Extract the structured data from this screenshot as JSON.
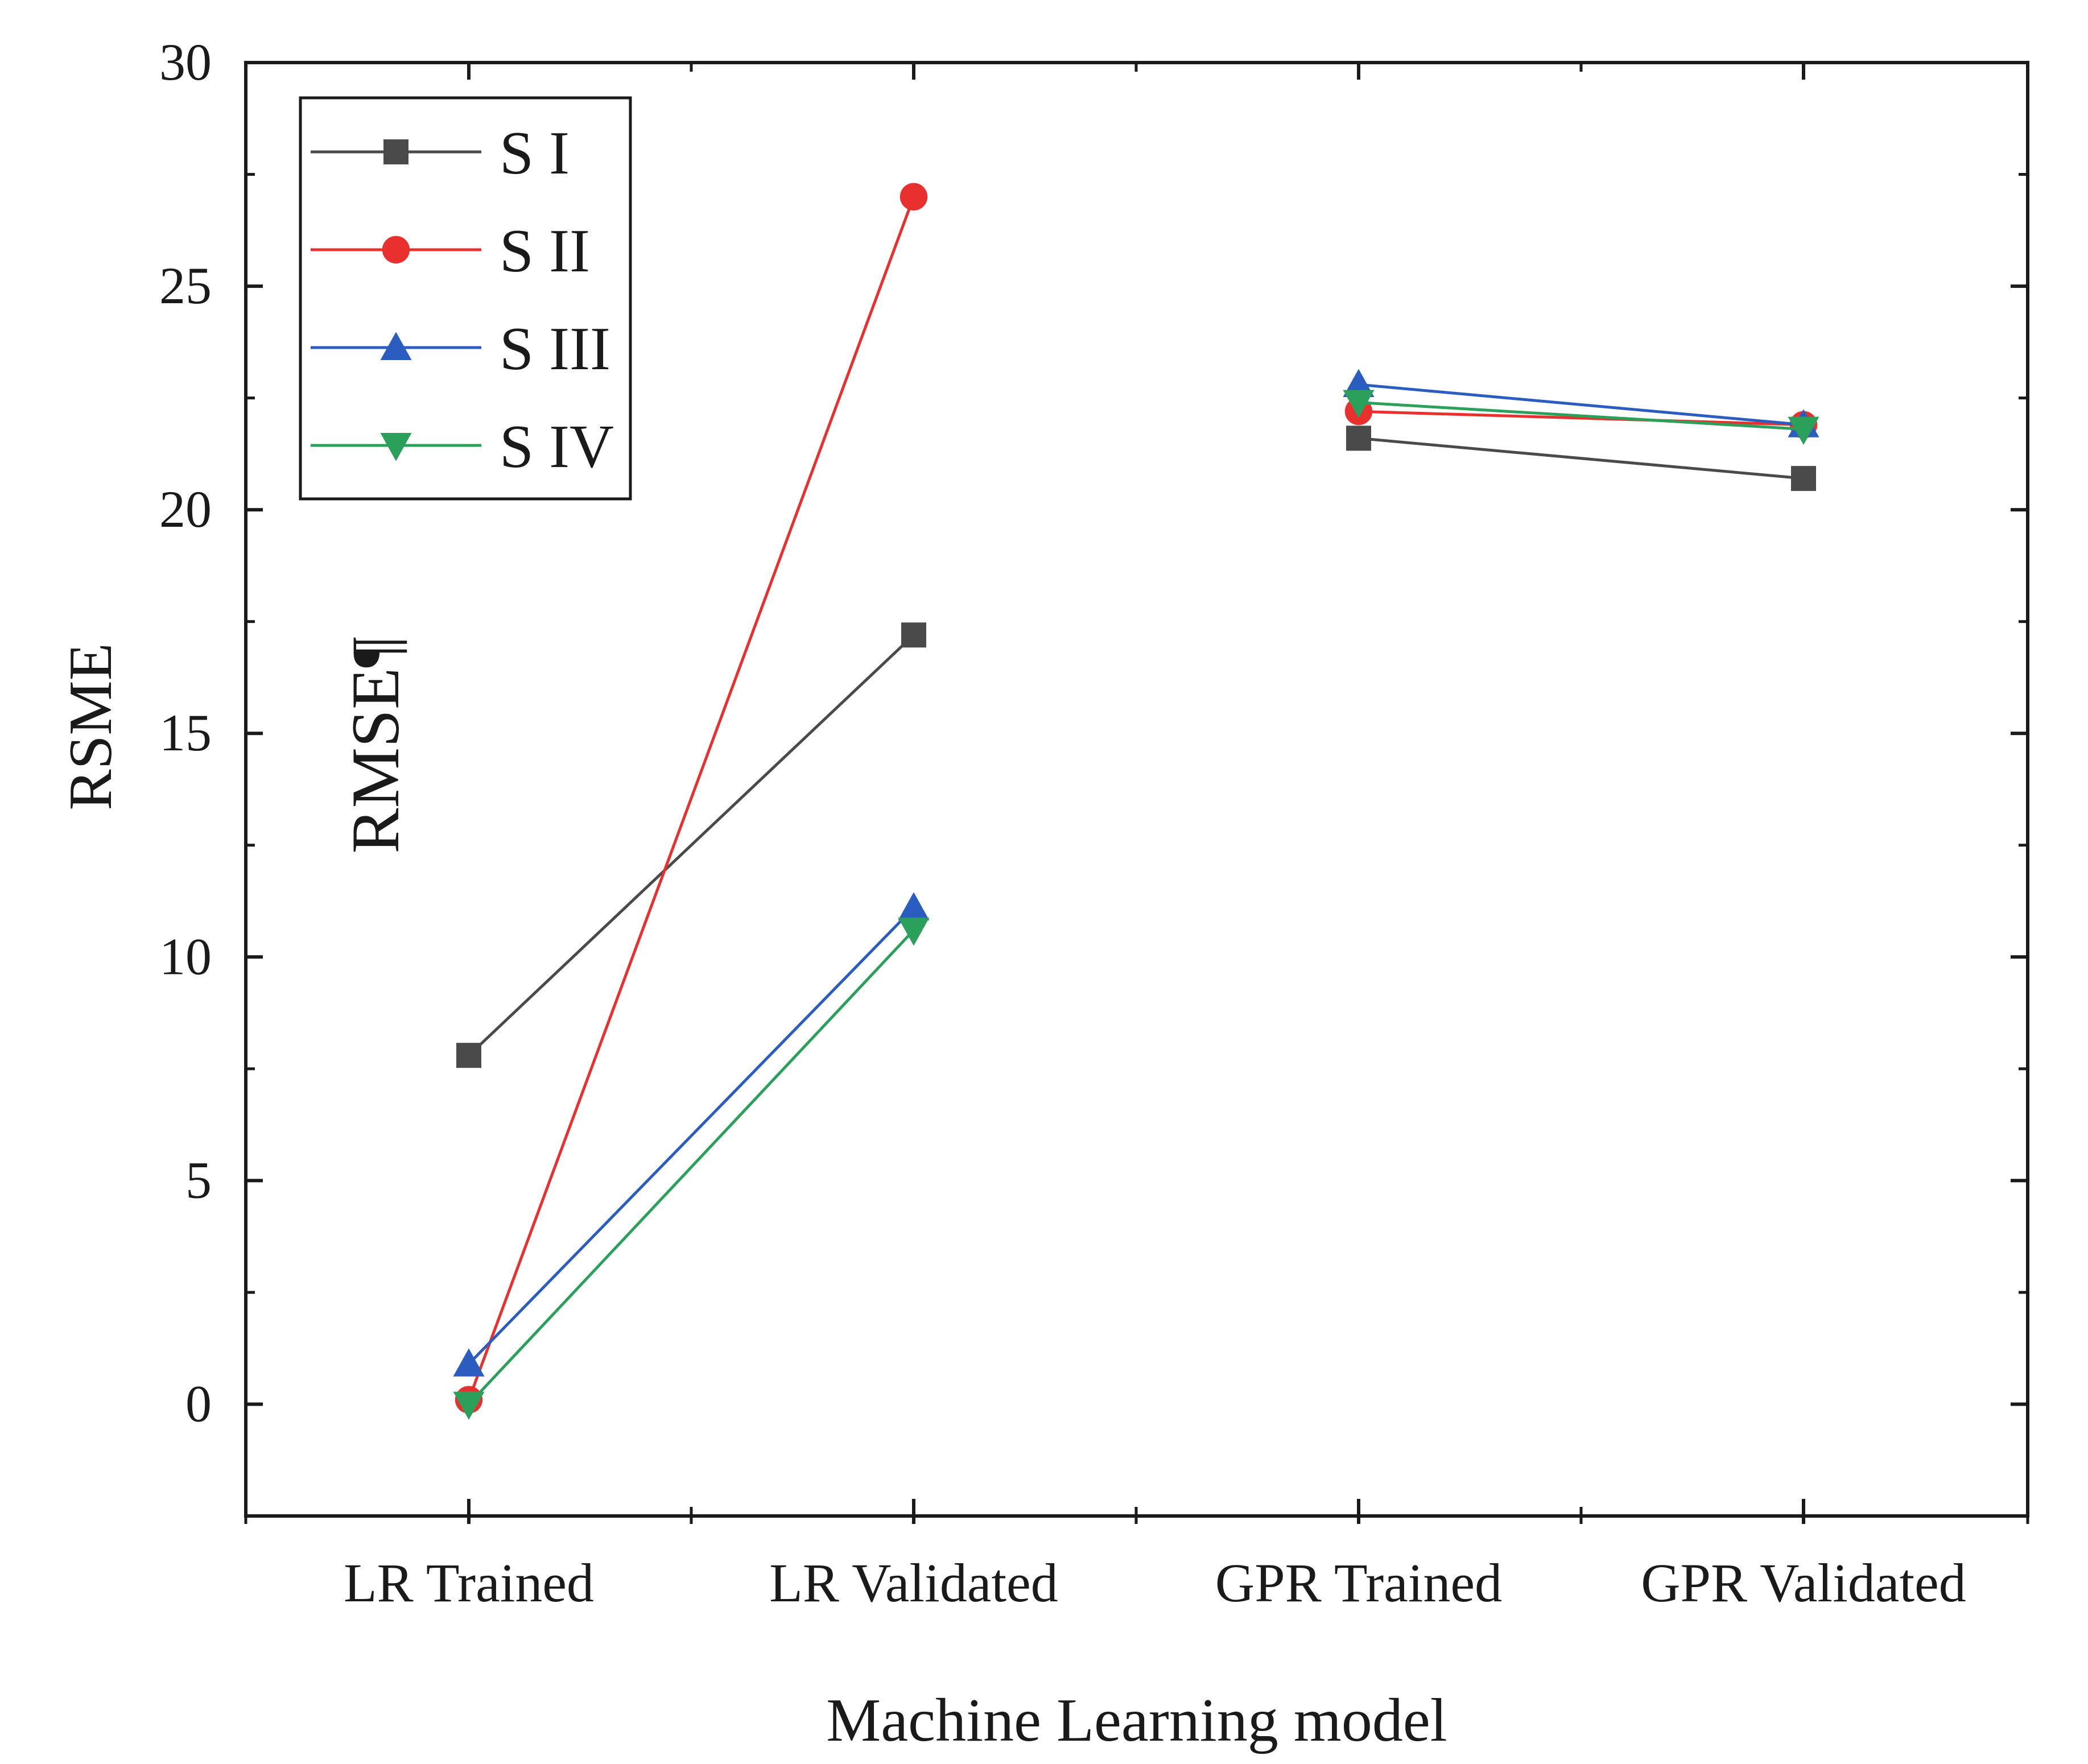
{
  "chart_data": {
    "type": "line",
    "title": "",
    "xlabel": "Machine Learning model",
    "ylabel": "RSME",
    "annotation": "RMSE¶",
    "categories": [
      "LR Trained",
      "LR Validated",
      "GPR Trained",
      "GPR Validated"
    ],
    "ylim": [
      -2.5,
      30
    ],
    "yticks": [
      0,
      5,
      10,
      15,
      20,
      25,
      30
    ],
    "grid": false,
    "legend_position": "top-left",
    "series": [
      {
        "name": "S I",
        "color": "#4a4a4a",
        "marker": "square",
        "values": [
          7.8,
          17.2,
          21.6,
          20.7
        ]
      },
      {
        "name": "S II",
        "color": "#e8312f",
        "marker": "circle",
        "values": [
          0.1,
          27.0,
          22.2,
          21.9
        ]
      },
      {
        "name": "S III",
        "color": "#2a5dbf",
        "marker": "triangle-up",
        "values": [
          0.9,
          11.1,
          22.8,
          21.9
        ]
      },
      {
        "name": "S IV",
        "color": "#2aa05a",
        "marker": "triangle-down",
        "values": [
          0.0,
          10.6,
          22.4,
          21.8
        ]
      }
    ]
  }
}
